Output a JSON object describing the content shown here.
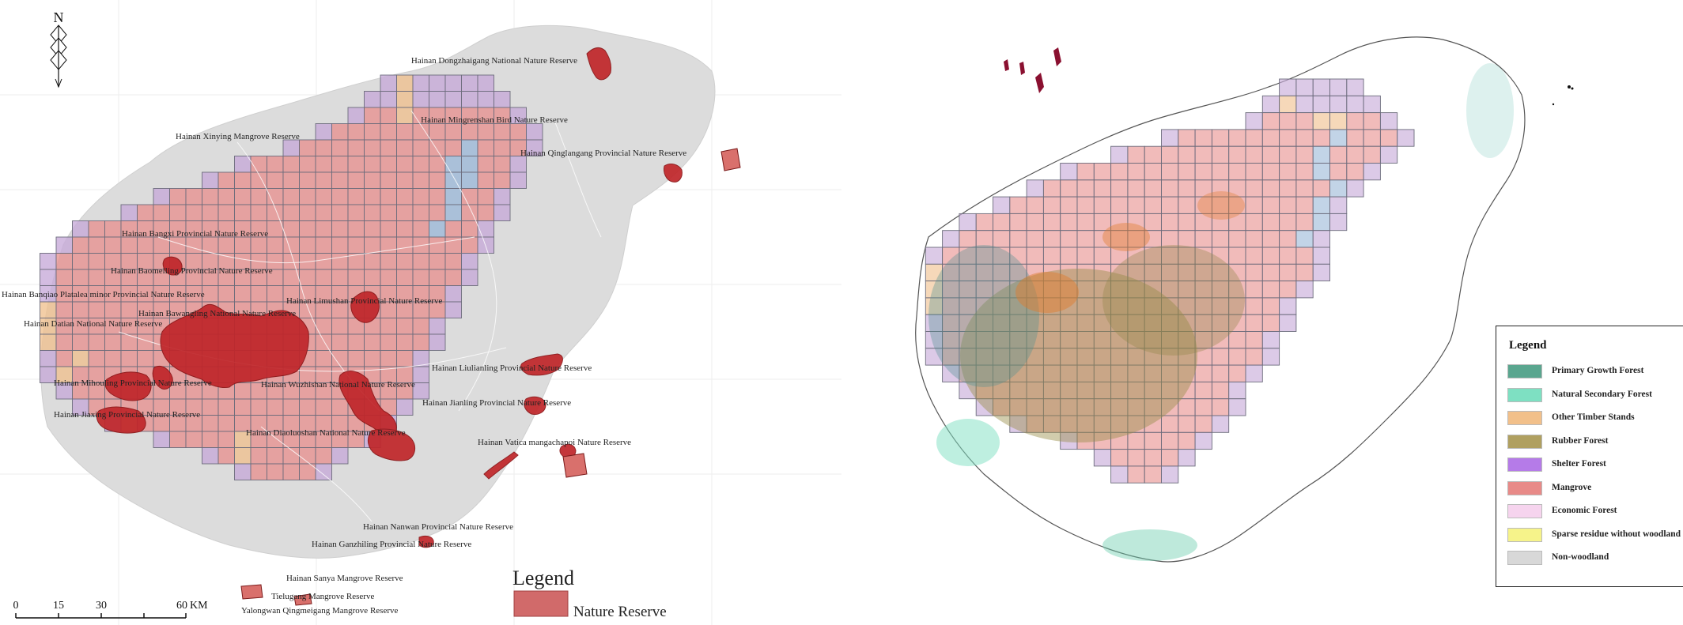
{
  "left_map": {
    "north_label": "N",
    "reserves": [
      {
        "id": "dongzhaigang",
        "label": "Hainan Dongzhaigang National Nature Reserve"
      },
      {
        "id": "mingrenshan",
        "label": "Hainan Mingrenshan Bird Nature Reserve"
      },
      {
        "id": "xinying",
        "label": "Hainan Xinying Mangrove Reserve"
      },
      {
        "id": "qinglangang",
        "label": "Hainan Qinglangang Provincial Nature Reserve"
      },
      {
        "id": "bangxi",
        "label": "Hainan Bangxi Provincial Nature Reserve"
      },
      {
        "id": "baomeiling",
        "label": "Hainan Baomeiling Provincial Nature Reserve"
      },
      {
        "id": "banqiao",
        "label": "Hainan Banqiao Platalea minor Provincial Nature Reserve"
      },
      {
        "id": "limushan",
        "label": "Hainan Limushan Provincial Nature Reserve"
      },
      {
        "id": "bawangling",
        "label": "Hainan Bawangling National Nature Reserve"
      },
      {
        "id": "datian",
        "label": "Hainan Datian National Nature Reserve"
      },
      {
        "id": "liulianling",
        "label": "Hainan Liulianling Provincial Nature Reserve"
      },
      {
        "id": "mihouling",
        "label": "Hainan Mihouling Provincial Nature Reserve"
      },
      {
        "id": "wuzhishan",
        "label": "Hainan Wuzhishan National Nature Reserve"
      },
      {
        "id": "jiaxing",
        "label": "Hainan Jiaxing Provincial Nature Reserve"
      },
      {
        "id": "jianling",
        "label": "Hainan Jianling Provincial Nature Reserve"
      },
      {
        "id": "diaoluoshan",
        "label": "Hainan Diaoluoshan National Nature Reserve"
      },
      {
        "id": "vatica",
        "label": "Hainan Vatica mangachapoi Nature Reserve"
      },
      {
        "id": "nanwan",
        "label": "Hainan Nanwan Provincial Nature Reserve"
      },
      {
        "id": "ganzhiling",
        "label": "Hainan Ganzhiling Provincial Nature Reserve"
      },
      {
        "id": "sanya",
        "label": "Hainan Sanya Mangrove Reserve"
      },
      {
        "id": "tielugang",
        "label": "Tielugang Mangrove Reserve"
      },
      {
        "id": "yalongwan",
        "label": "Yalongwan Qingmeigang Mangrove Reserve"
      }
    ],
    "scale": {
      "ticks": [
        "0",
        "15",
        "30",
        "60"
      ],
      "unit": "KM"
    },
    "legend": {
      "title": "Legend",
      "items": [
        {
          "label": "Nature Reserve",
          "color": "#d16a6a"
        }
      ]
    }
  },
  "right_map": {
    "legend": {
      "title": "Legend",
      "items": [
        {
          "label": "Primary Growth Forest",
          "color": "#5aa68f"
        },
        {
          "label": "Natural Secondary Forest",
          "color": "#7ee0c2"
        },
        {
          "label": "Other Timber Stands",
          "color": "#f2c08a"
        },
        {
          "label": "Rubber Forest",
          "color": "#b0a060"
        },
        {
          "label": "Shelter Forest",
          "color": "#b57be8"
        },
        {
          "label": "Mangrove",
          "color": "#e88a88"
        },
        {
          "label": "Economic Forest",
          "color": "#f6d4ee"
        },
        {
          "label": "Sparse residue without woodland",
          "color": "#f6f38a"
        },
        {
          "label": "Non-woodland",
          "color": "#d8d8d8"
        }
      ]
    }
  },
  "colors": {
    "reserve_red": "#c0262a",
    "grid_red": "#e8918f",
    "grid_purple": "#c6a9d8",
    "grid_blue": "#9cb9d9",
    "grid_orange": "#f0c08e",
    "island_gray": "#dcdcdc"
  }
}
